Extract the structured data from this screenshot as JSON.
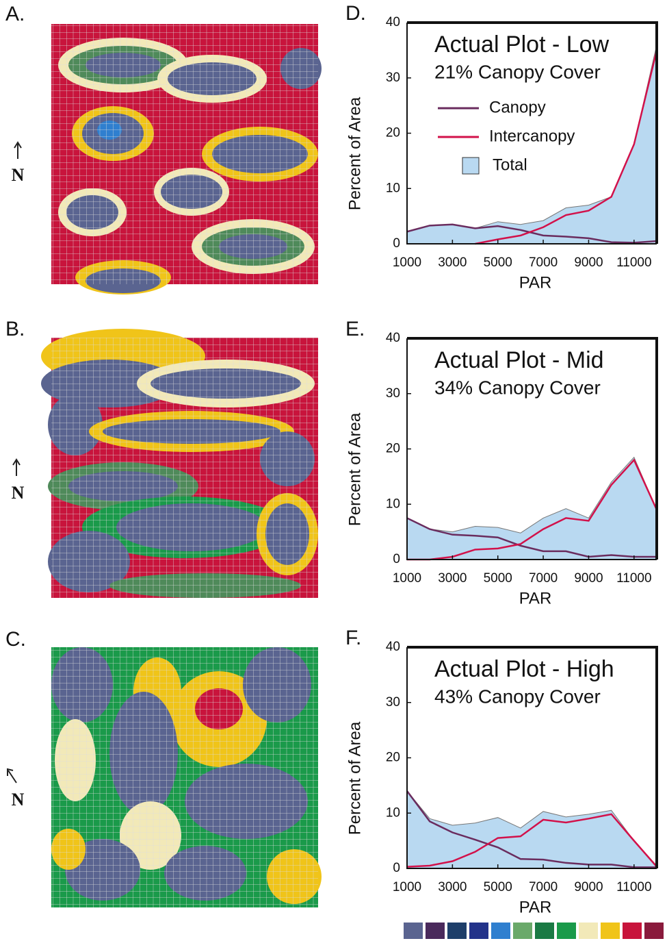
{
  "maps": [
    {
      "label": "A.",
      "north": "N"
    },
    {
      "label": "B.",
      "north": "N"
    },
    {
      "label": "C.",
      "north": "N"
    }
  ],
  "chart_data": [
    {
      "type": "line",
      "panel": "D.",
      "title": "Actual Plot - Low",
      "subtitle": "21% Canopy Cover",
      "x_label": "PAR",
      "y_label": "Percent of Area",
      "x": [
        1000,
        2000,
        3000,
        4000,
        5000,
        6000,
        7000,
        8000,
        9000,
        10000,
        11000,
        12000
      ],
      "xlim": [
        1000,
        12000
      ],
      "xticks": [
        1000,
        3000,
        5000,
        7000,
        9000,
        11000
      ],
      "ylim": [
        0,
        40
      ],
      "yticks": [
        0,
        10,
        20,
        30,
        40
      ],
      "legend": true,
      "series": [
        {
          "name": "Canopy",
          "color": "#6a2c5e",
          "values": [
            2.2,
            3.3,
            3.5,
            2.8,
            3.2,
            2.5,
            1.5,
            1.3,
            1,
            0.3,
            0.2,
            0.5
          ]
        },
        {
          "name": "Intercanopy",
          "color": "#d2114a",
          "values": [
            null,
            null,
            null,
            0,
            0.8,
            1.5,
            3,
            5.2,
            6,
            8.5,
            18,
            35
          ]
        },
        {
          "name": "Total",
          "color": "#b9d9f1",
          "style": "area",
          "values": [
            2.2,
            3.3,
            3.5,
            2.8,
            4,
            3.5,
            4.2,
            6.5,
            7,
            8.5,
            18,
            36
          ]
        }
      ]
    },
    {
      "type": "line",
      "panel": "E.",
      "title": "Actual Plot - Mid",
      "subtitle": "34% Canopy Cover",
      "x_label": "PAR",
      "y_label": "Percent of Area",
      "x": [
        1000,
        2000,
        3000,
        4000,
        5000,
        6000,
        7000,
        8000,
        9000,
        10000,
        11000,
        12000
      ],
      "xlim": [
        1000,
        12000
      ],
      "xticks": [
        1000,
        3000,
        5000,
        7000,
        9000,
        11000
      ],
      "ylim": [
        0,
        40
      ],
      "yticks": [
        0,
        10,
        20,
        30,
        40
      ],
      "legend": false,
      "series": [
        {
          "color": "#6a2c5e",
          "values": [
            7.5,
            5.5,
            4.5,
            4.3,
            4,
            2.5,
            1.5,
            1.5,
            0.5,
            0.8,
            0.5,
            0.5
          ]
        },
        {
          "color": "#d2114a",
          "values": [
            0,
            0,
            0.5,
            1.8,
            2,
            2.8,
            5.5,
            7.5,
            7,
            13.5,
            18,
            9
          ]
        },
        {
          "color": "#b9d9f1",
          "style": "area",
          "values": [
            7.5,
            5.5,
            5,
            6,
            5.8,
            4.8,
            7.5,
            9.2,
            7.5,
            14,
            18.5,
            9
          ]
        }
      ]
    },
    {
      "type": "line",
      "panel": "F.",
      "title": "Actual Plot - High",
      "subtitle": "43% Canopy Cover",
      "x_label": "PAR",
      "y_label": "Percent of Area",
      "x": [
        1000,
        2000,
        3000,
        4000,
        5000,
        6000,
        7000,
        8000,
        9000,
        10000,
        11000,
        12000
      ],
      "xlim": [
        1000,
        12000
      ],
      "xticks": [
        1000,
        3000,
        5000,
        7000,
        9000,
        11000
      ],
      "ylim": [
        0,
        40
      ],
      "yticks": [
        0,
        10,
        20,
        30,
        40
      ],
      "legend": false,
      "series": [
        {
          "color": "#6a2c5e",
          "values": [
            14,
            8.5,
            6.5,
            5.2,
            3.8,
            1.7,
            1.6,
            1,
            0.7,
            0.7,
            0.2,
            0.2
          ]
        },
        {
          "color": "#d2114a",
          "values": [
            0.3,
            0.5,
            1.3,
            3,
            5.5,
            5.8,
            8.8,
            8.3,
            9,
            9.8,
            5,
            0.3
          ]
        },
        {
          "color": "#b9d9f1",
          "style": "area",
          "values": [
            14,
            9,
            7.8,
            8.2,
            9.2,
            7.3,
            10.3,
            9.3,
            9.8,
            10.5,
            5,
            0.5
          ]
        }
      ]
    }
  ]
}
